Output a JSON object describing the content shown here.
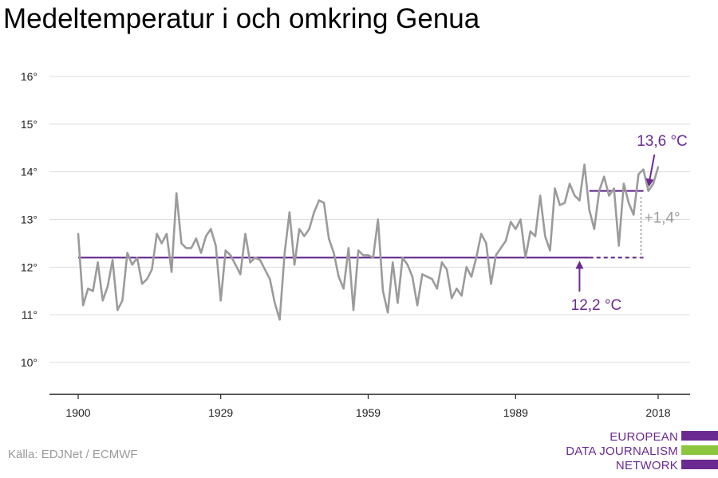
{
  "title": "Medeltemperatur i och omkring Genua",
  "source": "Källa: EDJNet / ECMWF",
  "logo": {
    "lines": [
      "EUROPEAN",
      "DATA JOURNALISM",
      "NETWORK"
    ],
    "colors": {
      "purple": "#6a2a91",
      "green": "#8cc63f"
    }
  },
  "colors": {
    "series": "#9b9b9b",
    "baseline": "#5b1f87",
    "annot_purple": "#6a2a91",
    "annot_gray": "#9b9b9b",
    "grid": "#dddddd"
  },
  "chart_data": {
    "type": "line",
    "title": "Medeltemperatur i och omkring Genua",
    "xlabel": "",
    "ylabel": "",
    "xlim": [
      1900,
      2018
    ],
    "ylim": [
      9.3,
      16.3
    ],
    "x_ticks": [
      1900,
      1929,
      1959,
      1989,
      2018
    ],
    "y_ticks": [
      10,
      11,
      12,
      13,
      14,
      15,
      16
    ],
    "y_tick_suffix": "°",
    "grid": "horizontal",
    "series": [
      {
        "x": [
          1900,
          1901,
          1902,
          1903,
          1904,
          1905,
          1906,
          1907,
          1908,
          1909,
          1910,
          1911,
          1912,
          1913,
          1914,
          1915,
          1916,
          1917,
          1918,
          1919,
          1920,
          1921,
          1922,
          1923,
          1924,
          1925,
          1926,
          1927,
          1928,
          1929,
          1930,
          1931,
          1932,
          1933,
          1934,
          1935,
          1936,
          1937,
          1938,
          1939,
          1940,
          1941,
          1942,
          1943,
          1944,
          1945,
          1946,
          1947,
          1948,
          1949,
          1950,
          1951,
          1952,
          1953,
          1954,
          1955,
          1956,
          1957,
          1958,
          1959,
          1960,
          1961,
          1962,
          1963,
          1964,
          1965,
          1966,
          1967,
          1968,
          1969,
          1970,
          1971,
          1972,
          1973,
          1974,
          1975,
          1976,
          1977,
          1978,
          1979,
          1980,
          1981,
          1982,
          1983,
          1984,
          1985,
          1986,
          1987,
          1988,
          1989,
          1990,
          1991,
          1992,
          1993,
          1994,
          1995,
          1996,
          1997,
          1998,
          1999,
          2000,
          2001,
          2002,
          2003,
          2004,
          2005,
          2006,
          2007,
          2008,
          2009,
          2010,
          2011,
          2012,
          2013,
          2014,
          2015,
          2016,
          2017,
          2018
        ],
        "values": [
          12.7,
          11.2,
          11.55,
          11.5,
          12.1,
          11.3,
          11.6,
          12.15,
          11.1,
          11.3,
          12.3,
          12.05,
          12.2,
          11.65,
          11.75,
          11.95,
          12.7,
          12.5,
          12.7,
          11.9,
          13.55,
          12.5,
          12.4,
          12.4,
          12.6,
          12.3,
          12.65,
          12.8,
          12.45,
          11.3,
          12.35,
          12.25,
          12.05,
          11.85,
          12.7,
          12.1,
          12.2,
          12.15,
          11.95,
          11.75,
          11.25,
          10.9,
          12.3,
          13.15,
          12.05,
          12.8,
          12.65,
          12.8,
          13.15,
          13.4,
          13.35,
          12.6,
          12.3,
          11.8,
          11.55,
          12.4,
          11.1,
          12.35,
          12.25,
          12.25,
          12.2,
          13.0,
          11.5,
          11.05,
          12.1,
          11.25,
          12.2,
          12.05,
          11.8,
          11.2,
          11.85,
          11.8,
          11.75,
          11.55,
          12.1,
          11.95,
          11.35,
          11.55,
          11.4,
          12.0,
          11.8,
          12.2,
          12.7,
          12.5,
          11.65,
          12.25,
          12.4,
          12.55,
          12.95,
          12.8,
          13.0,
          12.2,
          12.75,
          12.65,
          13.5,
          12.65,
          12.35,
          13.65,
          13.3,
          13.35,
          13.75,
          13.5,
          13.4,
          14.15,
          13.2,
          12.8,
          13.6,
          13.9,
          13.5,
          13.65,
          12.45,
          13.75,
          13.35,
          13.1,
          13.95,
          14.05,
          13.6,
          13.75,
          14.1
        ]
      }
    ],
    "baselines": [
      {
        "from": 1900,
        "to": 2004,
        "value": 12.2,
        "style": "solid"
      },
      {
        "from": 2004,
        "to": 2015,
        "value": 12.2,
        "style": "dashed"
      },
      {
        "from": 2004,
        "to": 2015,
        "value": 13.6,
        "style": "solid"
      }
    ],
    "annotations": {
      "low": {
        "text": "12,2 °C",
        "x": 2002,
        "value": 12.2
      },
      "high": {
        "text": "13,6 °C",
        "x": 2014,
        "value": 13.6
      },
      "diff": {
        "text": "+1,4°",
        "x": 2015
      }
    }
  }
}
